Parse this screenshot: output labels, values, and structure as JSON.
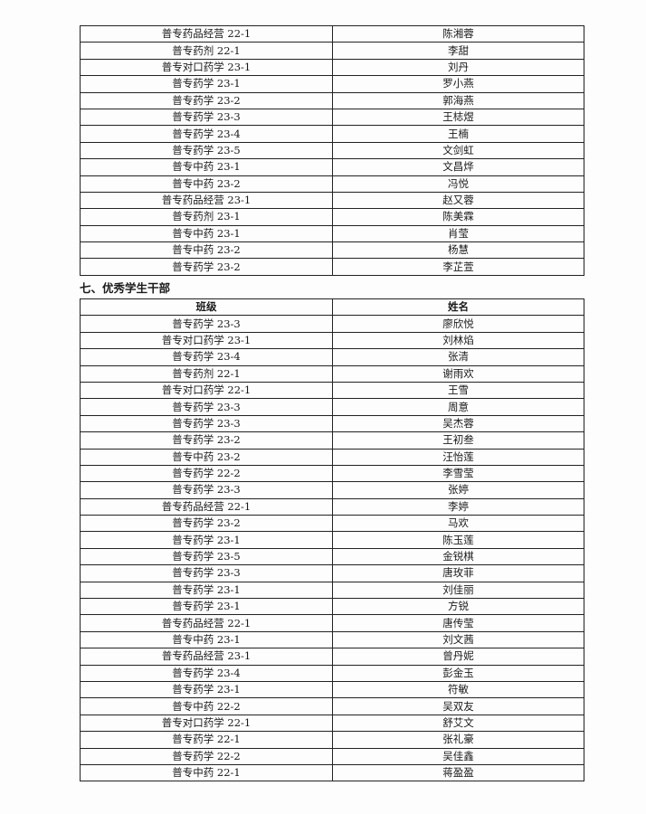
{
  "table1": {
    "rows": [
      [
        "普专药品经营 22-1",
        "陈湘蓉"
      ],
      [
        "普专药剂 22-1",
        "李甜"
      ],
      [
        "普专对口药学 23-1",
        "刘丹"
      ],
      [
        "普专药学 23-1",
        "罗小燕"
      ],
      [
        "普专药学 23-2",
        "郭海燕"
      ],
      [
        "普专药学 23-3",
        "王梽煜"
      ],
      [
        "普专药学 23-4",
        "王楠"
      ],
      [
        "普专药学 23-5",
        "文剑虹"
      ],
      [
        "普专中药 23-1",
        "文昌烨"
      ],
      [
        "普专中药 23-2",
        "冯悦"
      ],
      [
        "普专药品经营 23-1",
        "赵又蓉"
      ],
      [
        "普专药剂 23-1",
        "陈美霖"
      ],
      [
        "普专中药 23-1",
        "肖莹"
      ],
      [
        "普专中药 23-2",
        "杨慧"
      ],
      [
        "普专药学 23-2",
        "李芷萱"
      ]
    ]
  },
  "section7": {
    "heading": "七、优秀学生干部",
    "headers": [
      "班级",
      "姓名"
    ],
    "rows": [
      [
        "普专药学 23-3",
        "廖欣悦"
      ],
      [
        "普专对口药学 23-1",
        "刘林焰"
      ],
      [
        "普专药学 23-4",
        "张清"
      ],
      [
        "普专药剂 22-1",
        "谢雨欢"
      ],
      [
        "普专对口药学 22-1",
        "王雪"
      ],
      [
        "普专药学 23-3",
        "周意"
      ],
      [
        "普专药学 23-3",
        "吴杰蓉"
      ],
      [
        "普专药学 23-2",
        "王初叁"
      ],
      [
        "普专中药 23-2",
        "汪怡莲"
      ],
      [
        "普专药学 22-2",
        "李雪莹"
      ],
      [
        "普专药学 23-3",
        "张婷"
      ],
      [
        "普专药品经营 22-1",
        "李婷"
      ],
      [
        "普专药学 23-2",
        "马欢"
      ],
      [
        "普专药学 23-1",
        "陈玉莲"
      ],
      [
        "普专药学 23-5",
        "金锐棋"
      ],
      [
        "普专药学 23-3",
        "唐玫菲"
      ],
      [
        "普专药学 23-1",
        "刘佳丽"
      ],
      [
        "普专药学 23-1",
        "方锐"
      ],
      [
        "普专药品经营 22-1",
        "唐传莹"
      ],
      [
        "普专中药 23-1",
        "刘文茜"
      ],
      [
        "普专药品经营 23-1",
        "曾丹妮"
      ],
      [
        "普专药学 23-4",
        "彭金玉"
      ],
      [
        "普专药学 23-1",
        "符敏"
      ],
      [
        "普专中药 22-2",
        "吴双友"
      ],
      [
        "普专对口药学 22-1",
        "舒艾文"
      ],
      [
        "普专药学 22-1",
        "张礼豪"
      ],
      [
        "普专药学 22-2",
        "吴佳鑫"
      ],
      [
        "普专中药 22-1",
        "蒋盈盈"
      ]
    ]
  }
}
